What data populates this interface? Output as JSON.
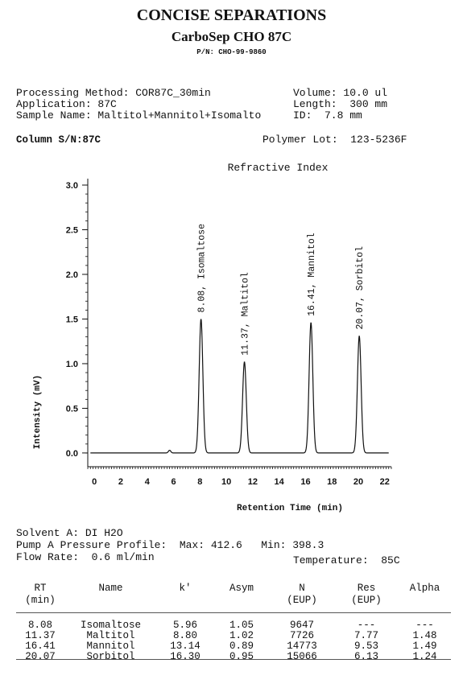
{
  "header": {
    "title": "CONCISE SEPARATIONS",
    "subtitle": "CarboSep CHO 87C",
    "part_number": "P/N: CHO-99-9860"
  },
  "info": {
    "processing_method": "Processing Method: COR87C_30min",
    "application": "Application: 87C",
    "sample_name": "Sample Name: Maltitol+Mannitol+Isomalto",
    "volume": "Volume: 10.0 ul",
    "length": "Length:  300 mm",
    "id": "ID:  7.8 mm",
    "column_sn": "Column S/N:87C",
    "polymer_lot": "Polymer Lot:  123-5236F"
  },
  "chart_data": {
    "type": "line",
    "title": "Refractive Index",
    "xlabel": "Retention Time (min)",
    "ylabel": "Intensity (mV)",
    "xlim": [
      -0.5,
      22.5
    ],
    "ylim": [
      -0.1,
      3.0
    ],
    "xticks": [
      "0",
      "2",
      "4",
      "6",
      "8",
      "10",
      "12",
      "14",
      "16",
      "18",
      "20",
      "22"
    ],
    "yticks": [
      "0.0",
      "0.5",
      "1.0",
      "1.5",
      "2.0",
      "2.5",
      "3.0"
    ],
    "grid": false,
    "peaks": [
      {
        "rt": 8.08,
        "height": 1.5,
        "label": "8.08, Isomaltose"
      },
      {
        "rt": 11.37,
        "height": 1.02,
        "label": "11.37, Maltitol"
      },
      {
        "rt": 16.41,
        "height": 1.46,
        "label": "16.41, Mannitol"
      },
      {
        "rt": 20.07,
        "height": 1.31,
        "label": "20.07, Sorbitol"
      }
    ],
    "minor_peaks": [
      {
        "rt": 5.7,
        "height": 0.03
      }
    ]
  },
  "conditions": {
    "solvent": "Solvent A: DI H2O",
    "pressure": "Pump A Pressure Profile:  Max: 412.6   Min: 398.3",
    "flow": "Flow Rate:  0.6 ml/min",
    "temperature": "Temperature:  85C"
  },
  "results": {
    "headers": [
      [
        "RT",
        "(min)"
      ],
      [
        "Name",
        ""
      ],
      [
        "k'",
        ""
      ],
      [
        "Asym",
        ""
      ],
      [
        "N",
        "(EUP)"
      ],
      [
        "Res",
        "(EUP)"
      ],
      [
        "Alpha",
        ""
      ]
    ],
    "rows": [
      [
        "8.08",
        "Isomaltose",
        "5.96",
        "1.05",
        "9647",
        "---",
        "---"
      ],
      [
        "11.37",
        "Maltitol",
        "8.80",
        "1.02",
        "7726",
        "7.77",
        "1.48"
      ],
      [
        "16.41",
        "Mannitol",
        "13.14",
        "0.89",
        "14773",
        "9.53",
        "1.49"
      ],
      [
        "20.07",
        "Sorbitol",
        "16.30",
        "0.95",
        "15066",
        "6.13",
        "1.24"
      ]
    ]
  }
}
